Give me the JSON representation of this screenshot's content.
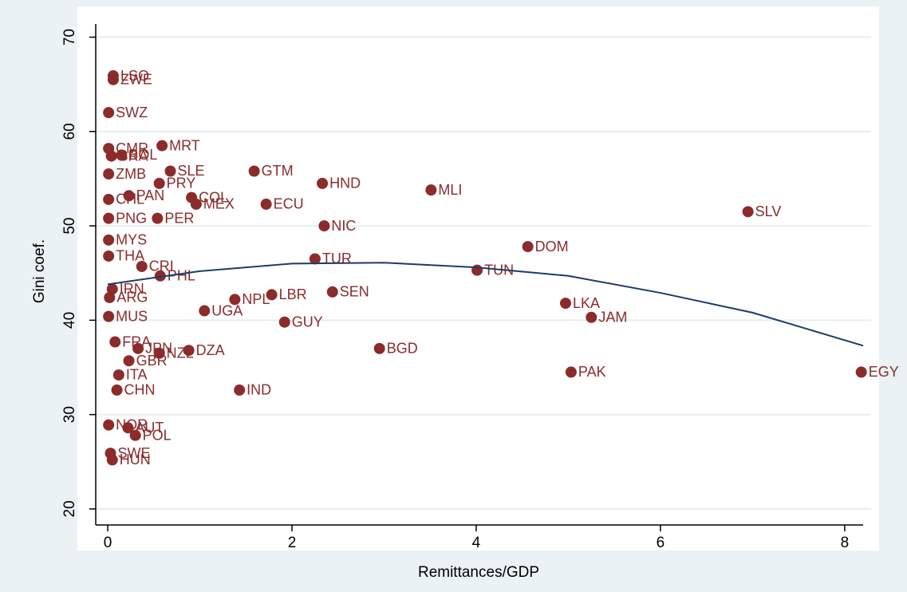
{
  "chart_data": {
    "type": "scatter",
    "xlabel": "Remittances/GDP",
    "ylabel": "Gini coef.",
    "color": "#8b2b2b",
    "fit_color": "#1a3d6b",
    "grid": true,
    "xlim": [
      -0.13,
      8.2
    ],
    "ylim": [
      18.3,
      71.4
    ],
    "xticks": [
      0,
      2,
      4,
      6,
      8
    ],
    "yticks": [
      20,
      30,
      40,
      50,
      60,
      70
    ],
    "labels": [
      "LSO",
      "ZWE",
      "SWZ",
      "MRT",
      "CMR",
      "BRA",
      "BOL",
      "GTM",
      "SLE",
      "ZMB",
      "HND",
      "MLI",
      "PRY",
      "COL",
      "PAN",
      "MEX",
      "ECU",
      "CHL",
      "PER",
      "PNG",
      "NIC",
      "SLV",
      "DOM",
      "MYS",
      "THA",
      "TUR",
      "TUN",
      "CRI",
      "PHL",
      "IRN",
      "SEN",
      "LBR",
      "NPL",
      "ARG",
      "UGA",
      "MUS",
      "LKA",
      "JAM",
      "GUY",
      "FRA",
      "DZA",
      "NZL",
      "JPN",
      "BGD",
      "GBR",
      "PAK",
      "EGY",
      "IND",
      "CHN",
      "ITA",
      "NOR",
      "AUT",
      "POL",
      "SWE",
      "HUN"
    ],
    "x": [
      0.06,
      0.06,
      0.01,
      0.59,
      0.01,
      0.04,
      0.15,
      1.59,
      0.68,
      0.01,
      2.33,
      3.51,
      0.56,
      0.91,
      0.23,
      0.96,
      1.72,
      0.01,
      0.54,
      0.01,
      2.35,
      6.95,
      4.56,
      0.01,
      0.01,
      2.25,
      4.01,
      0.37,
      0.57,
      0.05,
      2.44,
      1.78,
      1.38,
      0.02,
      1.05,
      0.01,
      4.97,
      5.25,
      1.92,
      0.08,
      0.88,
      0.56,
      0.33,
      2.95,
      0.23,
      5.03,
      8.18,
      1.43,
      0.1,
      0.12,
      0.01,
      0.22,
      0.3,
      0.03,
      0.05
    ],
    "y": [
      65.9,
      65.5,
      62.0,
      58.5,
      58.2,
      57.4,
      57.5,
      55.8,
      55.8,
      55.5,
      54.5,
      53.8,
      54.5,
      53.0,
      53.2,
      52.3,
      52.3,
      52.8,
      50.8,
      50.8,
      50.0,
      51.5,
      47.8,
      48.5,
      46.8,
      46.5,
      45.3,
      45.7,
      44.7,
      43.3,
      43.0,
      42.7,
      42.2,
      42.4,
      41.0,
      40.4,
      41.8,
      40.3,
      39.8,
      37.7,
      36.8,
      36.5,
      37.0,
      37.0,
      35.7,
      34.5,
      34.5,
      32.6,
      32.6,
      34.2,
      28.9,
      28.6,
      27.8,
      25.9,
      25.2
    ],
    "fit": {
      "x": [
        0,
        1,
        2,
        3,
        4,
        5,
        6,
        7,
        8.2
      ],
      "y": [
        43.8,
        45.2,
        46.0,
        46.1,
        45.6,
        44.7,
        42.9,
        40.8,
        37.3
      ]
    }
  }
}
